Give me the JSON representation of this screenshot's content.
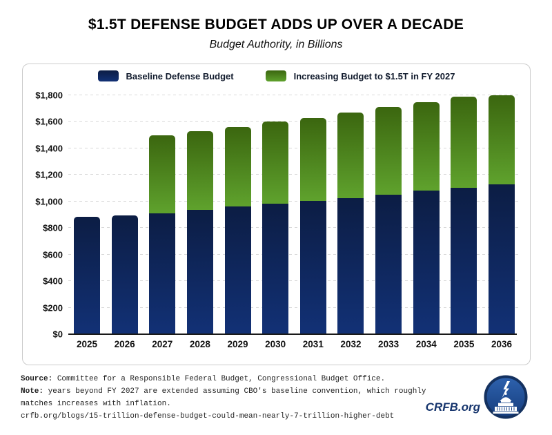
{
  "title": "$1.5T DEFENSE BUDGET ADDS UP OVER A DECADE",
  "subtitle": "Budget Authority, in Billions",
  "legend": [
    {
      "label": "Baseline Defense Budget",
      "swatch": "navy"
    },
    {
      "label": "Increasing Budget to $1.5T in FY 2027",
      "swatch": "green"
    }
  ],
  "colors": {
    "navy_top": "#0c1d44",
    "navy_bottom": "#123176",
    "green_top": "#3b660f",
    "green_bottom": "#5fa22d",
    "grid": "#d8d8d8",
    "axis": "#1a1a1a",
    "brand_navy": "#16356d"
  },
  "chart_data": {
    "type": "bar",
    "stacked": true,
    "title": "$1.5T DEFENSE BUDGET ADDS UP OVER A DECADE",
    "subtitle": "Budget Authority, in Billions",
    "categories": [
      "2025",
      "2026",
      "2027",
      "2028",
      "2029",
      "2030",
      "2031",
      "2032",
      "2033",
      "2034",
      "2035",
      "2036"
    ],
    "series": [
      {
        "name": "Baseline Defense Budget",
        "values": [
          885,
          895,
          910,
          935,
          960,
          985,
          1005,
          1025,
          1050,
          1080,
          1105,
          1130
        ]
      },
      {
        "name": "Increasing Budget to $1.5T in FY 2027",
        "values": [
          0,
          0,
          590,
          595,
          600,
          615,
          625,
          645,
          660,
          670,
          685,
          670
        ]
      }
    ],
    "totals": [
      885,
      895,
      1500,
      1530,
      1560,
      1600,
      1630,
      1670,
      1710,
      1750,
      1790,
      1800
    ],
    "xlabel": "",
    "ylabel": "",
    "ylim": [
      0,
      1800
    ],
    "yticks": [
      0,
      200,
      400,
      600,
      800,
      1000,
      1200,
      1400,
      1600,
      1800
    ],
    "ytick_labels": [
      "$0",
      "$200",
      "$400",
      "$600",
      "$800",
      "$1,000",
      "$1,200",
      "$1,400",
      "$1,600",
      "$1,800"
    ],
    "grid": "horizontal-dashed",
    "legend_position": "top"
  },
  "footer": {
    "source_label": "Source:",
    "source_text": " Committee for a Responsible Federal Budget, Congressional Budget Office.",
    "note_label": "Note:",
    "note_text": " years beyond FY 2027 are extended assuming CBO's baseline convention, which roughly matches increases with inflation.",
    "url": "crfb.org/blogs/15-trillion-defense-budget-could-mean-nearly-7-trillion-higher-debt",
    "brand": "CRFB.org"
  }
}
